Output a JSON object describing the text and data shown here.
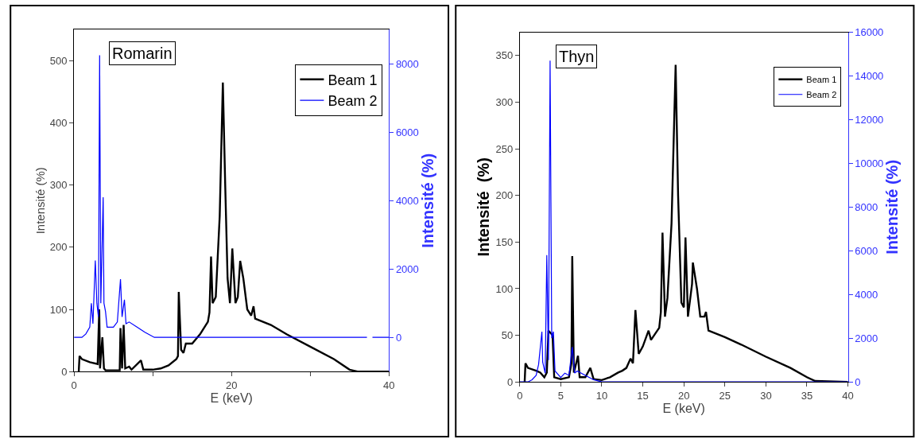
{
  "chart_data": [
    {
      "type": "line",
      "annotations": [
        "Romarin"
      ],
      "xlabel": "E (keV)",
      "ylabel": "Intensité (%)",
      "y2label": "Intensité (%)",
      "xlim": [
        0,
        40
      ],
      "xticks": [
        0,
        {
          "value": 10,
          "label": null
        },
        20,
        {
          "value": 30,
          "label": null
        },
        40
      ],
      "ylim": [
        0,
        550
      ],
      "yticks": [
        0,
        100,
        200,
        300,
        400,
        500
      ],
      "y2lim": [
        -1000,
        9000
      ],
      "y2ticks": [
        0,
        2000,
        4000,
        6000,
        8000
      ],
      "legend": "top right",
      "series": [
        {
          "name": "Beam 1",
          "color": "#000000",
          "x": [
            0.6,
            0.7,
            1,
            2,
            3,
            3.2,
            3.3,
            3.6,
            3.8,
            4,
            5,
            5.8,
            5.9,
            6.1,
            6.3,
            6.5,
            7,
            7.3,
            8.5,
            8.8,
            10,
            11,
            12,
            13,
            13.2,
            13.3,
            13.6,
            13.9,
            14.2,
            15,
            16,
            17,
            17.2,
            17.4,
            17.6,
            18,
            18.5,
            18.9,
            19.2,
            19.5,
            19.8,
            20.1,
            20.5,
            20.8,
            21.1,
            21.5,
            22,
            22.5,
            22.8,
            23,
            25,
            27,
            30,
            33,
            35,
            36,
            40
          ],
          "values": [
            0,
            25,
            20,
            15,
            12,
            100,
            5,
            55,
            5,
            2,
            2,
            2,
            70,
            5,
            75,
            5,
            8,
            3,
            18,
            3,
            3,
            5,
            10,
            20,
            25,
            128,
            35,
            30,
            45,
            45,
            60,
            80,
            95,
            185,
            110,
            120,
            250,
            465,
            300,
            150,
            110,
            198,
            110,
            120,
            178,
            150,
            100,
            90,
            105,
            85,
            75,
            60,
            40,
            20,
            3,
            0,
            0
          ]
        },
        {
          "name": "Beam 2",
          "color": "#0000ff",
          "axis": "y2",
          "x": [
            0,
            1,
            1.5,
            2,
            2.2,
            2.4,
            2.7,
            2.9,
            3.1,
            3.25,
            3.4,
            3.7,
            3.8,
            4,
            4.2,
            5,
            5.5,
            5.9,
            6.1,
            6.4,
            6.6,
            7,
            8,
            9,
            10.2,
            37.2,
            37.5,
            37.9,
            40
          ],
          "values": [
            0,
            0,
            100,
            300,
            1000,
            400,
            2250,
            1000,
            600,
            8250,
            1000,
            4100,
            1000,
            750,
            300,
            300,
            450,
            1700,
            600,
            1100,
            400,
            450,
            300,
            150,
            0,
            0,
            null,
            0,
            0
          ]
        }
      ]
    },
    {
      "type": "line",
      "annotations": [
        "Thyn"
      ],
      "xlabel": "E (keV)",
      "ylabel": "Intensité  (%)",
      "y2label": "Intensité (%)",
      "xlim": [
        0,
        40
      ],
      "xticks": [
        0,
        5,
        10,
        15,
        20,
        25,
        30,
        35,
        40
      ],
      "ylim": [
        0,
        375
      ],
      "yticks": [
        0,
        50,
        100,
        150,
        200,
        250,
        300,
        350
      ],
      "y2lim": [
        0,
        16000
      ],
      "y2ticks": [
        0,
        2000,
        4000,
        6000,
        8000,
        10000,
        12000,
        14000,
        16000
      ],
      "legend": "top right",
      "series": [
        {
          "name": "Beam 1",
          "color": "#000000",
          "x": [
            0.6,
            0.7,
            1,
            2,
            2.5,
            3,
            3.3,
            3.5,
            4,
            4.2,
            5,
            6,
            6.3,
            6.4,
            6.6,
            7.1,
            7.3,
            8,
            8.6,
            9,
            10,
            11,
            12,
            12.5,
            13,
            13.5,
            13.8,
            14.1,
            14.5,
            15,
            15.7,
            16,
            17,
            17.2,
            17.4,
            17.7,
            18,
            18.5,
            19,
            19.3,
            19.7,
            20,
            20.2,
            20.5,
            21,
            21.1,
            21.6,
            22,
            22.5,
            22.7,
            23,
            25,
            27,
            30,
            33,
            35,
            36,
            40
          ],
          "values": [
            0,
            20,
            15,
            12,
            10,
            5,
            10,
            55,
            50,
            5,
            3,
            5,
            20,
            135,
            10,
            28,
            5,
            5,
            15,
            3,
            2,
            5,
            10,
            12,
            15,
            25,
            20,
            77,
            30,
            38,
            55,
            45,
            58,
            75,
            160,
            70,
            90,
            170,
            340,
            200,
            85,
            80,
            155,
            70,
            105,
            128,
            100,
            70,
            70,
            75,
            55,
            48,
            40,
            27,
            15,
            5,
            1,
            0
          ]
        },
        {
          "name": "Beam 2",
          "color": "#0000ff",
          "axis": "y2",
          "x": [
            0,
            1,
            1.5,
            2,
            2.3,
            2.7,
            2.8,
            3.1,
            3.3,
            3.5,
            3.7,
            3.9,
            4.1,
            4.3,
            5,
            5.5,
            6,
            6.4,
            6.7,
            7,
            8,
            9,
            10,
            40
          ],
          "values": [
            0,
            0,
            100,
            300,
            800,
            2300,
            900,
            400,
            5800,
            1000,
            14700,
            2000,
            2300,
            500,
            200,
            400,
            300,
            1600,
            400,
            500,
            300,
            100,
            0,
            0
          ]
        }
      ]
    }
  ]
}
